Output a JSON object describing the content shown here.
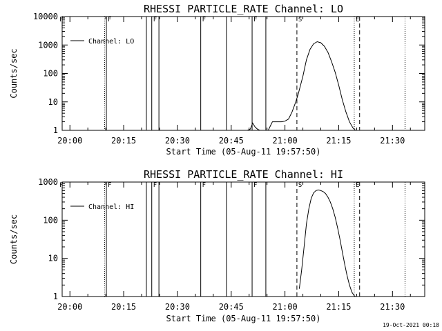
{
  "chart_data": [
    {
      "type": "line",
      "title": "RHESSI PARTICLE_RATE Channel: LO",
      "xlabel": "Start Time (05-Aug-11 19:57:50)",
      "ylabel": "Counts/sec",
      "yscale": "log",
      "ylim": [
        1,
        10000
      ],
      "xlim": [
        "19:57:50",
        "21:39:00"
      ],
      "xticks": [
        "20:00",
        "20:15",
        "20:30",
        "20:45",
        "21:00",
        "21:15",
        "21:30"
      ],
      "yticks": [
        "1",
        "10",
        "100",
        "1000",
        "10000"
      ],
      "legend": {
        "placement": "top-left",
        "entries": [
          "Channel: LO"
        ]
      },
      "series": [
        {
          "name": "Channel: LO",
          "x": [
            "20:49:30",
            "20:50:20",
            "20:51:00",
            "20:51:40",
            "20:52:20",
            "20:53:00",
            "20:55:20",
            "20:56:30",
            "20:57:00",
            "20:57:30",
            "20:58:00",
            "20:59:00",
            "21:00:00",
            "21:01:00",
            "21:02:00",
            "21:03:00",
            "21:03:40",
            "21:05:00",
            "21:06:00",
            "21:07:00",
            "21:08:00",
            "21:09:00",
            "21:10:00",
            "21:11:00",
            "21:12:00",
            "21:13:00",
            "21:14:00",
            "21:15:00",
            "21:16:00",
            "21:17:00",
            "21:18:00",
            "21:19:00",
            "21:19:40"
          ],
          "values": [
            1,
            1.1,
            1.8,
            1.3,
            1.1,
            1,
            1,
            2,
            2,
            2,
            2,
            2,
            2.1,
            2.5,
            4.5,
            10,
            18,
            80,
            300,
            700,
            1100,
            1300,
            1200,
            900,
            550,
            260,
            110,
            38,
            12,
            4.5,
            2,
            1.2,
            1
          ]
        }
      ],
      "markers": {
        "flare_lines": [
          {
            "label": "F",
            "time": "20:09:40",
            "style": "dotted"
          },
          {
            "label": "F",
            "time": "20:10:10",
            "style": "solid"
          },
          {
            "label": "F",
            "time": "20:21:20",
            "style": "solid"
          },
          {
            "label": "F",
            "time": "20:22:50",
            "style": "solid"
          },
          {
            "label": "F",
            "time": "20:24:50",
            "style": "solid"
          },
          {
            "label": "F",
            "time": "20:36:30",
            "style": "solid"
          },
          {
            "label": "F",
            "time": "20:43:40",
            "style": "solid"
          },
          {
            "label": "F",
            "time": "20:50:50",
            "style": "solid"
          },
          {
            "label": "F",
            "time": "20:54:40",
            "style": "solid"
          }
        ],
        "S": {
          "label": "S",
          "time": "21:03:20",
          "style": "dashed"
        },
        "E": {
          "label": "E",
          "time": "21:19:20",
          "style": "dotted"
        },
        "E_dash": {
          "time": "21:20:50",
          "style": "dashed"
        },
        "extra": [
          {
            "time": "21:33:30",
            "style": "dotted"
          }
        ],
        "left_top_label": "F"
      }
    },
    {
      "type": "line",
      "title": "RHESSI PARTICLE_RATE Channel: HI",
      "xlabel": "Start Time (05-Aug-11 19:57:50)",
      "ylabel": "Counts/sec",
      "yscale": "log",
      "ylim": [
        1,
        1000
      ],
      "xlim": [
        "19:57:50",
        "21:39:00"
      ],
      "xticks": [
        "20:00",
        "20:15",
        "20:30",
        "20:45",
        "21:00",
        "21:15",
        "21:30"
      ],
      "yticks": [
        "1",
        "10",
        "100",
        "1000"
      ],
      "legend": {
        "placement": "top-left",
        "entries": [
          "Channel: HI"
        ]
      },
      "series": [
        {
          "name": "Channel: HI",
          "x": [
            "21:04:00",
            "21:04:40",
            "21:05:20",
            "21:06:00",
            "21:06:40",
            "21:07:20",
            "21:08:00",
            "21:08:40",
            "21:09:20",
            "21:10:00",
            "21:10:40",
            "21:11:20",
            "21:12:00",
            "21:12:40",
            "21:13:20",
            "21:14:00",
            "21:14:40",
            "21:15:20",
            "21:16:00",
            "21:16:40",
            "21:17:20",
            "21:18:00",
            "21:18:40",
            "21:19:20",
            "21:19:40"
          ],
          "values": [
            1.6,
            5,
            20,
            80,
            200,
            380,
            520,
            600,
            620,
            600,
            560,
            500,
            400,
            300,
            200,
            120,
            65,
            32,
            15,
            7,
            3.5,
            2,
            1.3,
            1.05,
            1
          ]
        }
      ],
      "markers": {
        "flare_lines": [
          {
            "label": "F",
            "time": "20:09:40",
            "style": "dotted"
          },
          {
            "label": "F",
            "time": "20:10:10",
            "style": "solid"
          },
          {
            "label": "F",
            "time": "20:21:20",
            "style": "solid"
          },
          {
            "label": "F",
            "time": "20:22:50",
            "style": "solid"
          },
          {
            "label": "F",
            "time": "20:24:50",
            "style": "solid"
          },
          {
            "label": "F",
            "time": "20:36:30",
            "style": "solid"
          },
          {
            "label": "F",
            "time": "20:43:40",
            "style": "solid"
          },
          {
            "label": "F",
            "time": "20:50:50",
            "style": "solid"
          },
          {
            "label": "F",
            "time": "20:54:40",
            "style": "solid"
          }
        ],
        "S": {
          "label": "S",
          "time": "21:03:20",
          "style": "dashed"
        },
        "E": {
          "label": "E",
          "time": "21:19:20",
          "style": "dotted"
        },
        "E_dash": {
          "time": "21:20:50",
          "style": "dashed"
        },
        "extra": [
          {
            "time": "21:33:30",
            "style": "dotted"
          }
        ],
        "left_top_label": "F"
      }
    }
  ],
  "footer": {
    "timestamp": "19-Oct-2021 00:18"
  }
}
